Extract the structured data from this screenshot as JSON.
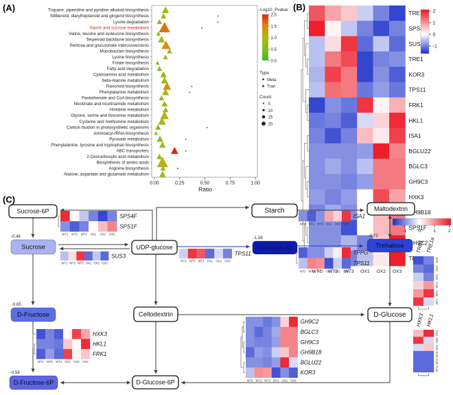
{
  "figure": {
    "panelA_label": "(A)",
    "panelB_label": "(B)",
    "panelC_label": "(C)"
  },
  "colors": {
    "heatmap_red": "#ec1420",
    "heatmap_blue": "#192dca",
    "pathway_green": "#43bd28",
    "pathway_yellow": "#b5b512",
    "pathway_orange": "#d98b0e",
    "pathway_red": "#e02412",
    "highlight_label": "#e01b1b",
    "box_blue_light": "#aab3ef",
    "box_blue_mid": "#5c6fe6",
    "box_blue": "#2b44d4",
    "box_navy": "#0e1bb0"
  },
  "panelA": {
    "chart_data": {
      "type": "scatter",
      "xlabel": "Ratio",
      "xlim": [
        0,
        1
      ],
      "x_ticks": [
        "0.00",
        "0.25",
        "0.50",
        "0.75",
        "1.00"
      ],
      "x_tick_values": [
        0,
        0.25,
        0.5,
        0.75,
        1.0
      ],
      "point_shape_tran": "triangle",
      "point_shape_meta": "circle",
      "pathways": [
        {
          "label": "Tropane, piperidine and pyridine alkaloid biosynthesis",
          "ratio": 0.11,
          "count": 10,
          "logp": 0.9,
          "meta": null,
          "highlight": false
        },
        {
          "label": "Stilbenoid, diarylheptanoid and gingerol biosynthesis",
          "ratio": 0.09,
          "count": 7,
          "logp": 0.7,
          "meta": 0.63,
          "highlight": false
        },
        {
          "label": "Lysine degradation",
          "ratio": 0.05,
          "count": 6,
          "logp": 0.6,
          "meta": 0.63,
          "highlight": false
        },
        {
          "label": "Starch and sucrose metabolism",
          "ratio": 0.1,
          "count": 20,
          "logp": 1.6,
          "meta": 0.47,
          "highlight": true
        },
        {
          "label": "Valine, leucine and isoleucine biosynthesis",
          "ratio": 0.04,
          "count": 4,
          "logp": 0.5,
          "meta": null,
          "highlight": false
        },
        {
          "label": "Terpenoid backbone biosynthesis",
          "ratio": 0.07,
          "count": 10,
          "logp": 0.8,
          "meta": null,
          "highlight": false
        },
        {
          "label": "Pentose and glucuronate interconversions",
          "ratio": 0.115,
          "count": 15,
          "logp": 1.5,
          "meta": null,
          "highlight": false
        },
        {
          "label": "Monobactam biosynthesis",
          "ratio": 0.15,
          "count": 6,
          "logp": 0.8,
          "meta": null,
          "highlight": false
        },
        {
          "label": "Lysine biosynthesis",
          "ratio": 0.11,
          "count": 5,
          "logp": 0.7,
          "meta": null,
          "highlight": false
        },
        {
          "label": "Folate biosynthesis",
          "ratio": 0.03,
          "count": 3,
          "logp": 0.5,
          "meta": null,
          "highlight": false
        },
        {
          "label": "Fatty acid degradation",
          "ratio": 0.05,
          "count": 6,
          "logp": 0.5,
          "meta": null,
          "highlight": false
        },
        {
          "label": "Cyanoamino acid metabolism",
          "ratio": 0.09,
          "count": 9,
          "logp": 0.8,
          "meta": null,
          "highlight": false
        },
        {
          "label": "beta-Alanine metabolism",
          "ratio": 0.1,
          "count": 10,
          "logp": 0.9,
          "meta": null,
          "highlight": false
        },
        {
          "label": "Flavonoid biosynthesis",
          "ratio": 0.125,
          "count": 13,
          "logp": 1.5,
          "meta": 0.37,
          "highlight": false
        },
        {
          "label": "Phenylalanine metabolism",
          "ratio": 0.11,
          "count": 10,
          "logp": 0.9,
          "meta": 0.35,
          "highlight": false
        },
        {
          "label": "Pantothenate and CoA biosynthesis",
          "ratio": 0.07,
          "count": 6,
          "logp": 0.6,
          "meta": null,
          "highlight": false
        },
        {
          "label": "Nicotinate and nicotinamide metabolism",
          "ratio": 0.1,
          "count": 8,
          "logp": 0.8,
          "meta": null,
          "highlight": false
        },
        {
          "label": "Histidine metabolism",
          "ratio": 0.11,
          "count": 7,
          "logp": 0.8,
          "meta": null,
          "highlight": false
        },
        {
          "label": "Glycine, serine and threonine metabolism",
          "ratio": 0.1,
          "count": 14,
          "logp": 1.1,
          "meta": null,
          "highlight": false
        },
        {
          "label": "Cysteine and methionine metabolism",
          "ratio": 0.075,
          "count": 12,
          "logp": 0.8,
          "meta": null,
          "highlight": false
        },
        {
          "label": "Carbon fixation in photosynthetic organisms",
          "ratio": 0.035,
          "count": 7,
          "logp": 0.5,
          "meta": 0.52,
          "highlight": false
        },
        {
          "label": "Aminoacyl-tRNA biosynthesis",
          "ratio": 0.015,
          "count": 3,
          "logp": 0.5,
          "meta": null,
          "highlight": false
        },
        {
          "label": "Pyruvate metabolism",
          "ratio": 0.055,
          "count": 9,
          "logp": 0.6,
          "meta": 0.31,
          "highlight": false
        },
        {
          "label": "Phenylalanine, tyrosine and tryptophan biosynthesis",
          "ratio": 0.08,
          "count": 9,
          "logp": 0.7,
          "meta": null,
          "highlight": false
        },
        {
          "label": "ABC transporters",
          "ratio": 0.2,
          "count": 11,
          "logp": 2.0,
          "meta": 0.31,
          "highlight": false
        },
        {
          "label": "2-Oxocarboxylic acid metabolism",
          "ratio": 0.05,
          "count": 7,
          "logp": 0.6,
          "meta": null,
          "highlight": false
        },
        {
          "label": "Biosynthesis of amino acids",
          "ratio": 0.08,
          "count": 20,
          "logp": 1.1,
          "meta": null,
          "highlight": false
        },
        {
          "label": "Arginine biosynthesis",
          "ratio": 0.085,
          "count": 6,
          "logp": 0.7,
          "meta": 0.23,
          "highlight": false
        },
        {
          "label": "Alanine, aspartate and glutamate metabolism",
          "ratio": 0.08,
          "count": 9,
          "logp": 0.8,
          "meta": null,
          "highlight": false
        }
      ]
    },
    "legend": {
      "pvalue_title": "-Log10_Pvalue",
      "pvalue_ticks": [
        "2.0",
        "1.5",
        "1.0",
        "0.5",
        "0.0"
      ],
      "type_title": "Type",
      "type_items": [
        "Meta",
        "Tran"
      ],
      "count_title": "Count",
      "count_items": [
        "5",
        "10",
        "15",
        "20"
      ]
    }
  },
  "panelB": {
    "chart_data": {
      "type": "heatmap",
      "samples": [
        "WT1",
        "WT2",
        "WT3",
        "OX1",
        "OX2",
        "OX3"
      ],
      "genes": [
        "TRE1",
        "SPS4F",
        "SUS3",
        "TRE1",
        "KOR3",
        "TPS11",
        "FRK1",
        "HKL1",
        "ISA1",
        "BGLU22",
        "BGLC3",
        "GH9C3",
        "HXK3",
        "GH9B18",
        "SPS1F",
        "GH9C2",
        "TPPG"
      ],
      "values": [
        [
          1.5,
          0.8,
          0.5,
          -0.4,
          -1.0,
          -1.5
        ],
        [
          2.0,
          0.1,
          -0.45,
          -1.0,
          -1.45,
          -1.0
        ],
        [
          -0.5,
          0.3,
          1.8,
          -1.2,
          -0.45,
          -1.2
        ],
        [
          -0.5,
          1.2,
          1.6,
          -1.5,
          -1.0,
          -0.9
        ],
        [
          -0.6,
          1.7,
          1.2,
          -1.5,
          -0.9,
          -1.3
        ],
        [
          -0.5,
          1.3,
          1.2,
          -1.1,
          -0.8,
          -1.1
        ],
        [
          -1.5,
          -0.9,
          -1.1,
          1.8,
          0.1,
          0.7
        ],
        [
          -1.1,
          -1.0,
          -1.3,
          -0.3,
          0.4,
          1.9
        ],
        [
          -1.0,
          -1.4,
          -1.0,
          0.6,
          0.2,
          1.7
        ],
        [
          -0.9,
          -0.9,
          -0.9,
          -0.8,
          2.0,
          1.1
        ],
        [
          -0.9,
          -0.7,
          -0.9,
          -0.5,
          1.2,
          1.2
        ],
        [
          -0.9,
          -0.9,
          -1.0,
          -0.8,
          1.2,
          1.2
        ],
        [
          -0.8,
          -1.0,
          -0.8,
          0.0,
          1.6,
          0.8
        ],
        [
          -1.0,
          -0.7,
          -0.9,
          0.0,
          0.6,
          1.2
        ],
        [
          -0.9,
          -0.9,
          -1.4,
          0.0,
          0.6,
          1.2
        ],
        [
          -0.9,
          -0.9,
          -0.6,
          -1.0,
          0.5,
          2.0
        ],
        [
          -1.0,
          -0.6,
          -1.0,
          -0.5,
          0.2,
          2.0
        ]
      ],
      "colorbar_ticks": [
        "2",
        "1",
        "0",
        "-1"
      ],
      "colorbar_tick_values": [
        2,
        1,
        0,
        -1
      ]
    }
  },
  "panelC": {
    "samples": [
      "WT1",
      "WT2",
      "WT3",
      "OX1",
      "OX2",
      "OX3"
    ],
    "boxes": {
      "sucrose6p": {
        "label": "Sucrose-6P",
        "value": "",
        "fill": "#ffffff",
        "text": "#111111"
      },
      "starch": {
        "label": "Starch",
        "value": "",
        "fill": "#ffffff",
        "text": "#111111"
      },
      "maltodextrin": {
        "label": "Maltodextrin",
        "value": "",
        "fill": "#ffffff",
        "text": "#111111"
      },
      "udpglucose": {
        "label": "UDP-glucose",
        "value": "",
        "fill": "#ffffff",
        "text": "#111111"
      },
      "trehalose6p": {
        "label": "Trehalose-6P",
        "value": "-1.59",
        "fill": "#0e1bb0",
        "text": "#0b1342"
      },
      "trehalose": {
        "label": "Trehalose",
        "value": "-0.72",
        "fill": "#2b44d4",
        "text": "#0a0a14"
      },
      "sucrose": {
        "label": "Sucrose",
        "value": "-0.48",
        "fill": "#aab3ef",
        "text": "#111111"
      },
      "dfructose": {
        "label": "D-Fructose",
        "value": "-0.65",
        "fill": "#5c6fe6",
        "text": "#0a0a14"
      },
      "dfructose6p": {
        "label": "D-Fructose-6P",
        "value": "-0.58",
        "fill": "#5b66e2",
        "text": "#0a0a14"
      },
      "cellodextrin": {
        "label": "Cellodextrin",
        "value": "",
        "fill": "#ffffff",
        "text": "#111111"
      },
      "dglucose": {
        "label": "D-Glucose",
        "value": "",
        "fill": "#ffffff",
        "text": "#111111"
      },
      "dglucose6p": {
        "label": "D-Glucose-6P",
        "value": "",
        "fill": "#ffffff",
        "text": "#111111"
      }
    },
    "heatmaps": {
      "sps": {
        "genes": [
          "SPS4F",
          "SPS1F"
        ],
        "values": [
          [
            1.9,
            0.05,
            -0.45,
            -1.0,
            -1.5,
            -1.0
          ],
          [
            -0.9,
            -1.3,
            -1.0,
            0.0,
            0.6,
            1.1
          ]
        ]
      },
      "sus": {
        "genes": [
          "SUS3"
        ],
        "values": [
          [
            -0.5,
            0.3,
            1.8,
            -1.2,
            -0.45,
            -1.2
          ]
        ]
      },
      "tps": {
        "genes": [
          "TPS11"
        ],
        "values": [
          [
            -0.4,
            1.8,
            1.5,
            -1.2,
            -0.3,
            -1.0
          ]
        ]
      },
      "isa": {
        "genes": [
          "ISA1"
        ],
        "values": [
          [
            -0.9,
            -1.3,
            -0.9,
            0.8,
            0.4,
            1.8
          ]
        ]
      },
      "tppg": {
        "genes": [
          "TPPG",
          "TPS11"
        ],
        "values": [
          [
            -1.3,
            -0.9,
            -0.9,
            -0.4,
            0.15,
            1.9
          ],
          [
            -0.5,
            1.1,
            1.0,
            -1.4,
            -0.4,
            -1.2
          ]
        ]
      },
      "fru": {
        "genes": [
          "HXK3",
          "HKL1",
          "FRK1"
        ],
        "values": [
          [
            -1.4,
            -1.0,
            -1.3,
            0.05,
            1.7,
            0.8
          ],
          [
            -1.0,
            -1.0,
            -1.1,
            0.5,
            0.05,
            1.9
          ],
          [
            -1.3,
            -0.8,
            -1.2,
            1.7,
            0.1,
            0.5
          ]
        ]
      },
      "cel": {
        "genes": [
          "GH9C2",
          "BGLC3",
          "GH9C3",
          "GH9B18",
          "BGLU22",
          "KOR3"
        ],
        "values": [
          [
            -0.9,
            -0.9,
            -1.1,
            -0.9,
            0.4,
            1.9
          ],
          [
            -0.9,
            -1.2,
            -1.0,
            -0.7,
            1.1,
            1.1
          ],
          [
            -0.9,
            -1.0,
            -1.0,
            -0.8,
            1.1,
            1.1
          ],
          [
            -1.2,
            -0.8,
            -0.9,
            -0.4,
            0.5,
            1.1
          ],
          [
            -0.9,
            -0.9,
            -1.0,
            -0.8,
            1.9,
            -0.3
          ],
          [
            -0.5,
            1.0,
            0.9,
            -1.4,
            -0.9,
            -1.3
          ]
        ]
      },
      "tre_v": {
        "genes": [
          "TRE1",
          "TRE1a"
        ],
        "rows_top_to_bottom": [
          "OX3",
          "OX2",
          "OX1",
          "WT3",
          "WT2",
          "WT1"
        ],
        "values": [
          [
            -1.4,
            -1.0
          ],
          [
            -1.0,
            -1.2
          ],
          [
            -0.4,
            -1.0
          ],
          [
            0.4,
            0.9
          ],
          [
            0.9,
            1.8
          ],
          [
            1.8,
            -0.3
          ]
        ]
      },
      "glc_v": {
        "genes": [
          "HXK3",
          "HKL1"
        ],
        "rows_top_to_bottom": [
          "OX3",
          "OX2",
          "OX1",
          "WT3",
          "WT2",
          "WT1"
        ],
        "values": [
          [
            0.6,
            1.9
          ],
          [
            1.8,
            -0.3
          ],
          [
            -0.3,
            0.5
          ],
          [
            -1.2,
            -1.2
          ],
          [
            -1.2,
            -1.2
          ],
          [
            -1.2,
            -1.2
          ]
        ]
      }
    },
    "colorbar_ticks": [
      "-1",
      "0",
      "1",
      "2"
    ],
    "colorbar_tick_values": [
      -1,
      0,
      1,
      2
    ]
  }
}
